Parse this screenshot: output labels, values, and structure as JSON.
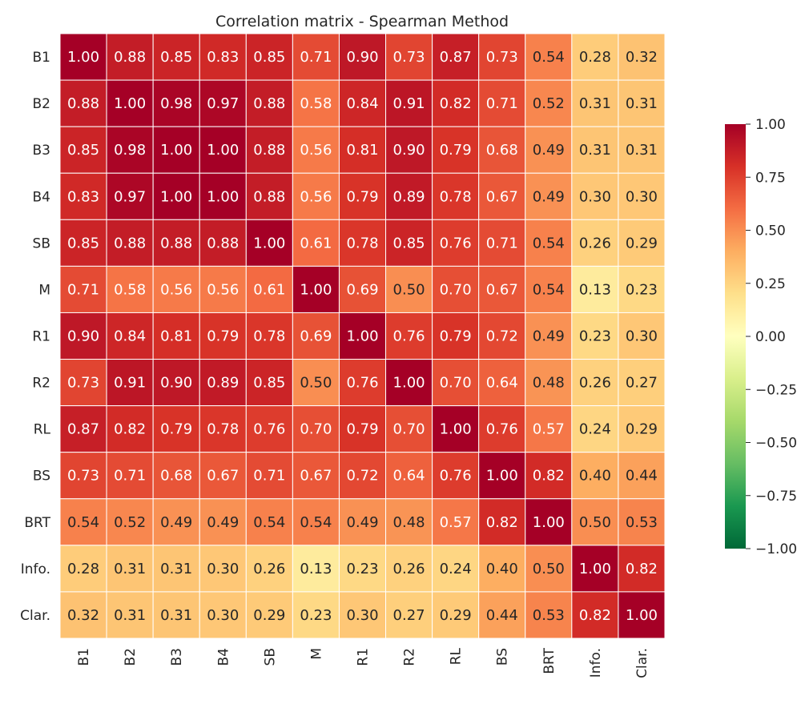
{
  "chart_data": {
    "type": "heatmap",
    "title": "Correlation matrix - Spearman Method",
    "xlabel": "",
    "ylabel": "",
    "x_categories": [
      "B1",
      "B2",
      "B3",
      "B4",
      "SB",
      "M",
      "R1",
      "R2",
      "RL",
      "BS",
      "BRT",
      "Info.",
      "Clar."
    ],
    "y_categories": [
      "B1",
      "B2",
      "B3",
      "B4",
      "SB",
      "M",
      "R1",
      "R2",
      "RL",
      "BS",
      "BRT",
      "Info.",
      "Clar."
    ],
    "values": [
      [
        1.0,
        0.88,
        0.85,
        0.83,
        0.85,
        0.71,
        0.9,
        0.73,
        0.87,
        0.73,
        0.54,
        0.28,
        0.32
      ],
      [
        0.88,
        1.0,
        0.98,
        0.97,
        0.88,
        0.58,
        0.84,
        0.91,
        0.82,
        0.71,
        0.52,
        0.31,
        0.31
      ],
      [
        0.85,
        0.98,
        1.0,
        1.0,
        0.88,
        0.56,
        0.81,
        0.9,
        0.79,
        0.68,
        0.49,
        0.31,
        0.31
      ],
      [
        0.83,
        0.97,
        1.0,
        1.0,
        0.88,
        0.56,
        0.79,
        0.89,
        0.78,
        0.67,
        0.49,
        0.3,
        0.3
      ],
      [
        0.85,
        0.88,
        0.88,
        0.88,
        1.0,
        0.61,
        0.78,
        0.85,
        0.76,
        0.71,
        0.54,
        0.26,
        0.29
      ],
      [
        0.71,
        0.58,
        0.56,
        0.56,
        0.61,
        1.0,
        0.69,
        0.5,
        0.7,
        0.67,
        0.54,
        0.13,
        0.23
      ],
      [
        0.9,
        0.84,
        0.81,
        0.79,
        0.78,
        0.69,
        1.0,
        0.76,
        0.79,
        0.72,
        0.49,
        0.23,
        0.3
      ],
      [
        0.73,
        0.91,
        0.9,
        0.89,
        0.85,
        0.5,
        0.76,
        1.0,
        0.7,
        0.64,
        0.48,
        0.26,
        0.27
      ],
      [
        0.87,
        0.82,
        0.79,
        0.78,
        0.76,
        0.7,
        0.79,
        0.7,
        1.0,
        0.76,
        0.57,
        0.24,
        0.29
      ],
      [
        0.73,
        0.71,
        0.68,
        0.67,
        0.71,
        0.67,
        0.72,
        0.64,
        0.76,
        1.0,
        0.82,
        0.4,
        0.44
      ],
      [
        0.54,
        0.52,
        0.49,
        0.49,
        0.54,
        0.54,
        0.49,
        0.48,
        0.57,
        0.82,
        1.0,
        0.5,
        0.53
      ],
      [
        0.28,
        0.31,
        0.31,
        0.3,
        0.26,
        0.13,
        0.23,
        0.26,
        0.24,
        0.4,
        0.5,
        1.0,
        0.82
      ],
      [
        0.32,
        0.31,
        0.31,
        0.3,
        0.29,
        0.23,
        0.3,
        0.27,
        0.29,
        0.44,
        0.53,
        0.82,
        1.0
      ]
    ],
    "value_format": "2 decimals",
    "value_range": [
      -1.0,
      1.0
    ],
    "colormap": "RdYlGn_r",
    "colorbar": {
      "ticks": [
        1.0,
        0.75,
        0.5,
        0.25,
        0.0,
        -0.25,
        -0.5,
        -0.75,
        -1.0
      ],
      "tick_labels": [
        "1.00",
        "0.75",
        "0.50",
        "0.25",
        "0.00",
        "−0.25",
        "−0.50",
        "−0.75",
        "−1.00"
      ],
      "position": "right"
    },
    "grid": "white cell borders",
    "annotations": "value printed in each cell"
  }
}
